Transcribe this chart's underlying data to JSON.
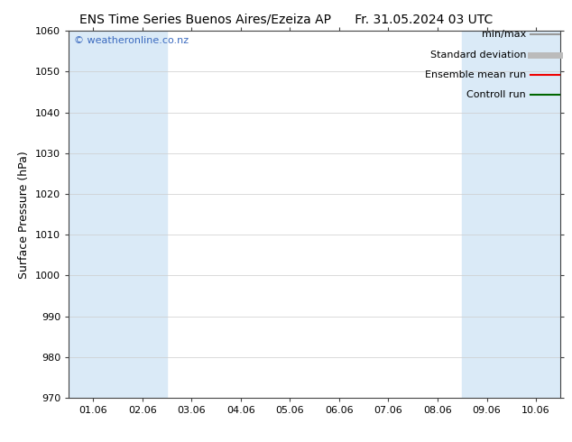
{
  "title_left": "ENS Time Series Buenos Aires/Ezeiza AP",
  "title_right": "Fr. 31.05.2024 03 UTC",
  "ylabel": "Surface Pressure (hPa)",
  "ylim": [
    970,
    1060
  ],
  "yticks": [
    970,
    980,
    990,
    1000,
    1010,
    1020,
    1030,
    1040,
    1050,
    1060
  ],
  "xtick_labels": [
    "01.06",
    "02.06",
    "03.06",
    "04.06",
    "05.06",
    "06.06",
    "07.06",
    "08.06",
    "09.06",
    "10.06"
  ],
  "background_color": "#ffffff",
  "plot_bg_color": "#ffffff",
  "watermark": "© weatheronline.co.nz",
  "watermark_color": "#3a6abf",
  "shaded_bands": [
    {
      "xstart": 0,
      "xend": 1,
      "color": "#ddeeff"
    },
    {
      "xstart": 1,
      "xend": 2,
      "color": "#ddeeff"
    },
    {
      "xstart": 7,
      "xend": 8,
      "color": "#ddeeff"
    },
    {
      "xstart": 8,
      "xend": 9,
      "color": "#ddeeff"
    },
    {
      "xstart": 9,
      "xend": 10,
      "color": "#ddeeff"
    }
  ],
  "legend_items": [
    {
      "label": "min/max",
      "color": "#999999",
      "lw": 1.5,
      "style": "solid"
    },
    {
      "label": "Standard deviation",
      "color": "#bbbbbb",
      "lw": 5,
      "style": "solid"
    },
    {
      "label": "Ensemble mean run",
      "color": "#ee0000",
      "lw": 1.5,
      "style": "solid"
    },
    {
      "label": "Controll run",
      "color": "#006600",
      "lw": 1.5,
      "style": "solid"
    }
  ],
  "title_fontsize": 10,
  "label_fontsize": 9,
  "tick_fontsize": 8,
  "watermark_fontsize": 8,
  "x_values": [
    0,
    1,
    2,
    3,
    4,
    5,
    6,
    7,
    8,
    9
  ]
}
